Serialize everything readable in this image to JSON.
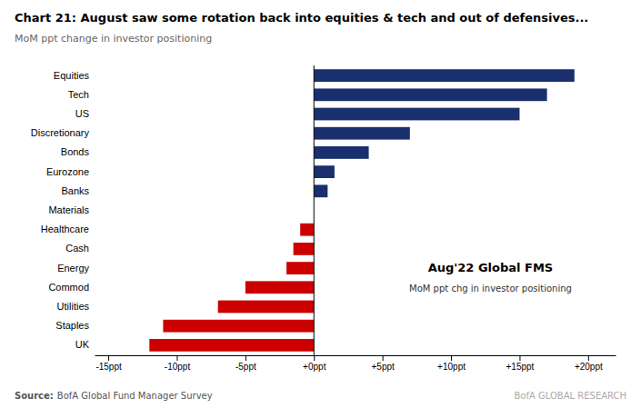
{
  "chart_data": {
    "type": "bar",
    "orientation": "horizontal",
    "title": "Chart 21: August saw some rotation back into equities & tech and out of defensives...",
    "subtitle": "MoM ppt change in investor positioning",
    "categories": [
      "Equities",
      "Tech",
      "US",
      "Discretionary",
      "Bonds",
      "Eurozone",
      "Banks",
      "Materials",
      "Healthcare",
      "Cash",
      "Energy",
      "Commod",
      "Utilities",
      "Staples",
      "UK"
    ],
    "values": [
      19,
      17,
      15,
      7,
      4,
      1.5,
      1,
      0,
      -1,
      -1.5,
      -2,
      -5,
      -7,
      -11,
      -12
    ],
    "colors": [
      "#1a2f6e",
      "#1a2f6e",
      "#1a2f6e",
      "#1a2f6e",
      "#1a2f6e",
      "#1a2f6e",
      "#1a2f6e",
      "#1a2f6e",
      "#cc0000",
      "#cc0000",
      "#cc0000",
      "#cc0000",
      "#cc0000",
      "#cc0000",
      "#cc0000"
    ],
    "xlim": [
      -16,
      22
    ],
    "xticks": [
      {
        "value": -15,
        "label": "-15ppt"
      },
      {
        "value": -10,
        "label": "-10ppt"
      },
      {
        "value": -5,
        "label": "-5ppt"
      },
      {
        "value": 0,
        "label": "+0ppt"
      },
      {
        "value": 5,
        "label": "+5ppt"
      },
      {
        "value": 10,
        "label": "+10ppt"
      },
      {
        "value": 15,
        "label": "+15ppt"
      },
      {
        "value": 20,
        "label": "+20ppt"
      }
    ],
    "grid": false,
    "annotations": [
      "Aug'22 Global FMS",
      "MoM ppt chg in investor positioning"
    ],
    "source_label": "Source:",
    "source": "BofA Global Fund Manager Survey",
    "watermark": "BofA GLOBAL RESEARCH"
  }
}
